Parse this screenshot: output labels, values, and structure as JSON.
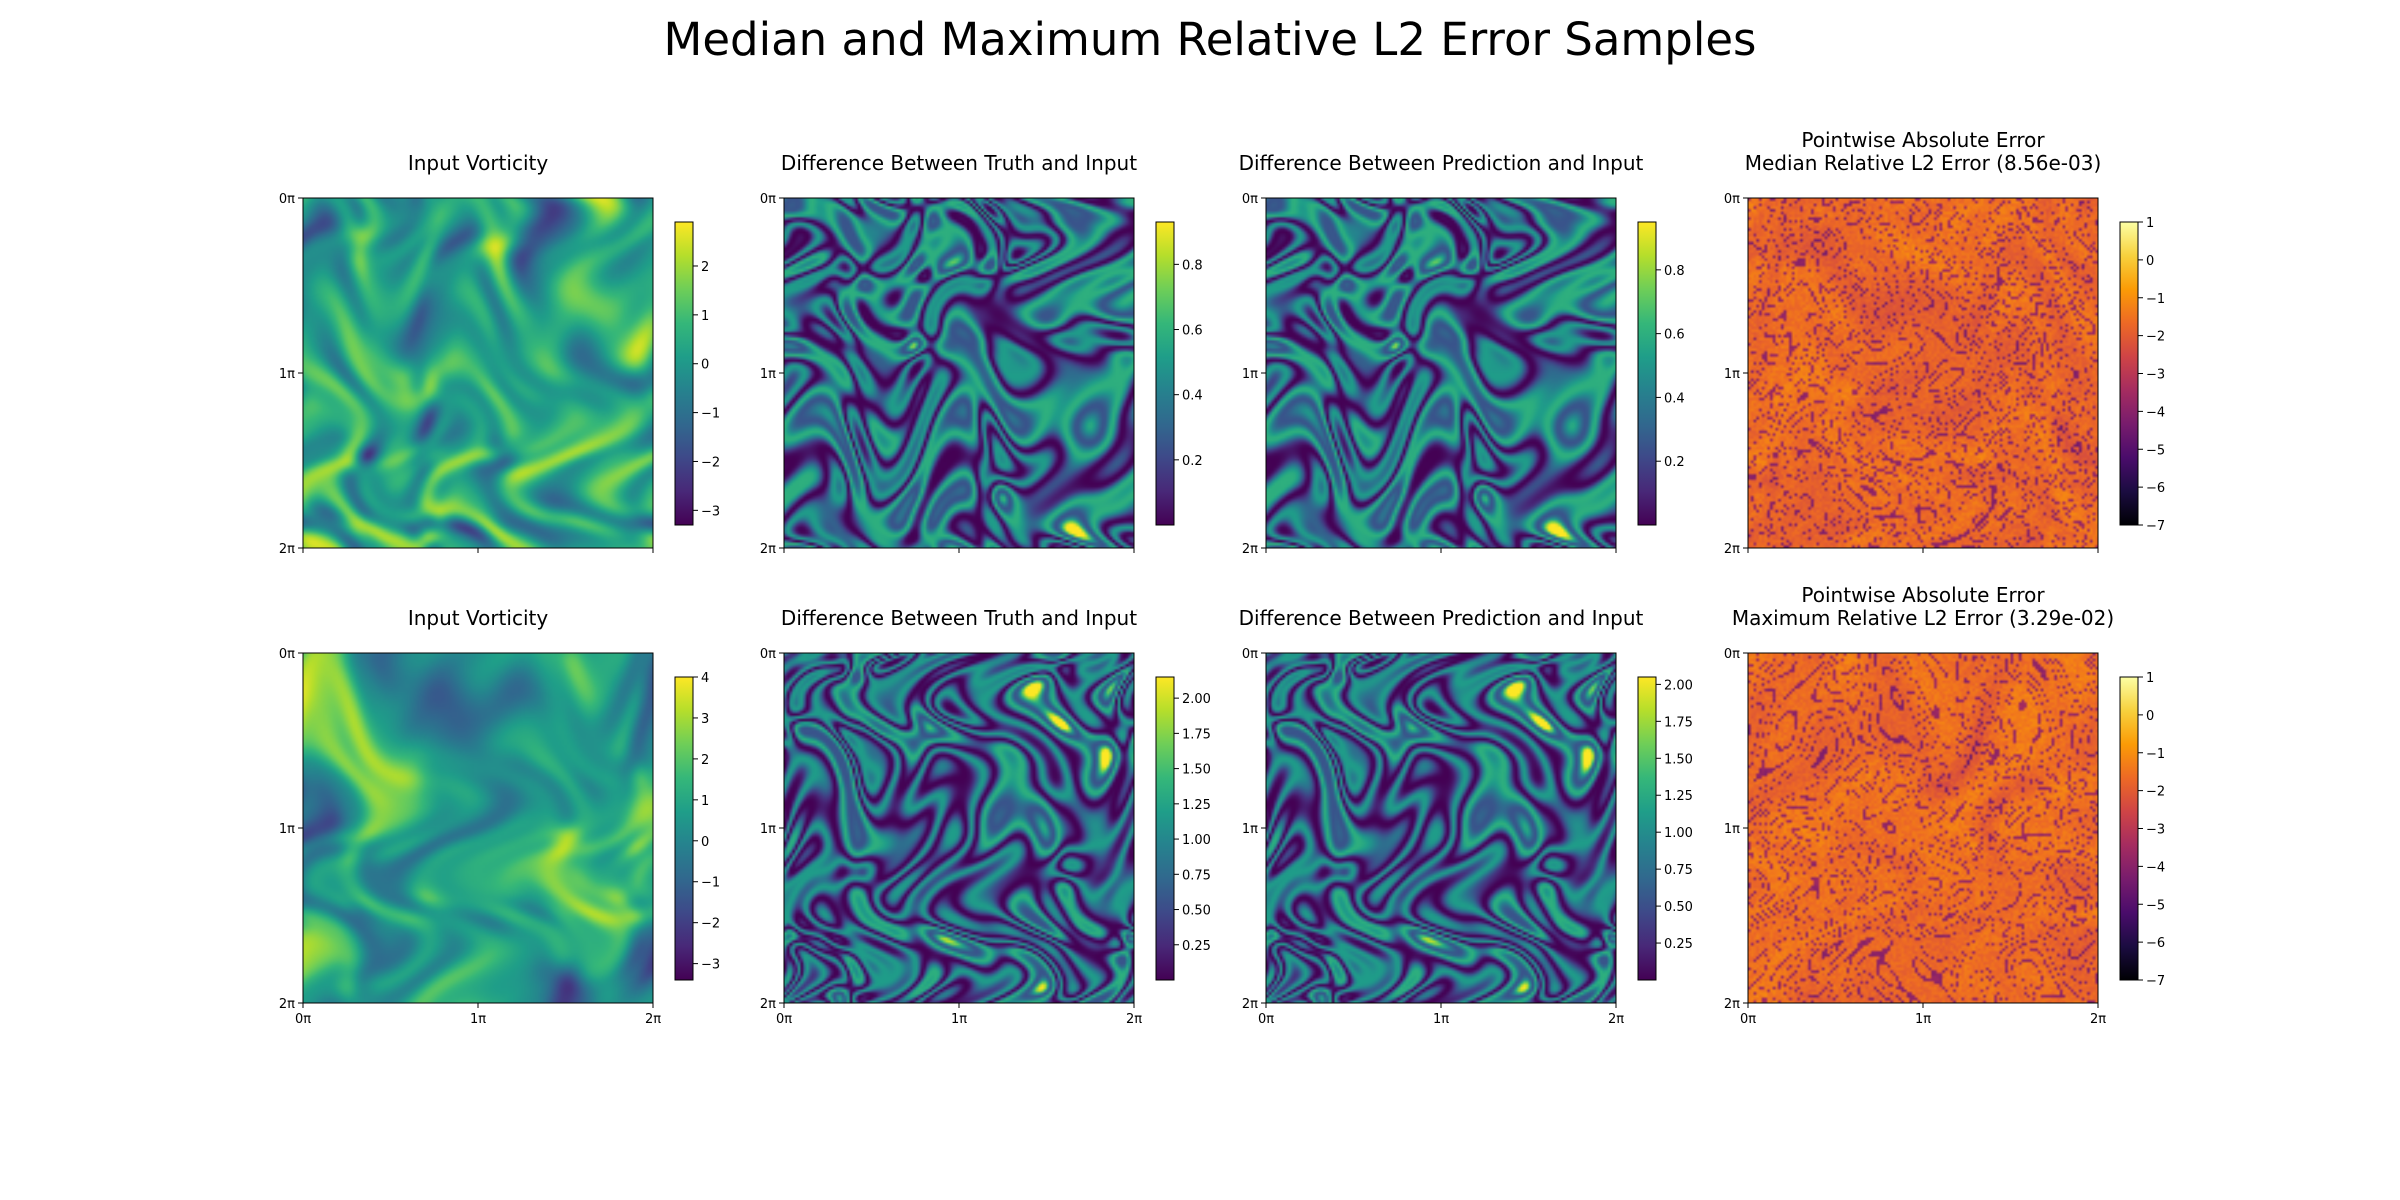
{
  "figure_title": "Median and Maximum Relative L2 Error Samples",
  "axis_ticks": [
    "0π",
    "1π",
    "2π"
  ],
  "colors": {
    "viridis": [
      "#440154",
      "#482878",
      "#3e4989",
      "#31688e",
      "#26828e",
      "#1f9e89",
      "#35b779",
      "#6ece58",
      "#b5de2b",
      "#fde725"
    ],
    "inferno": [
      "#000004",
      "#1b0c41",
      "#4a0c6b",
      "#781c6d",
      "#a52c60",
      "#cf4446",
      "#ed6925",
      "#fb9b06",
      "#f7d13d",
      "#fcffa4"
    ]
  },
  "chart_data": [
    {
      "type": "heatmap",
      "row": 0,
      "col": 0,
      "cmap": "viridis",
      "title": [
        "Input Vorticity"
      ],
      "x_range": [
        0,
        2
      ],
      "y_range": [
        0,
        2
      ],
      "x_unit": "π",
      "y_unit": "π",
      "x_ticks_labeled": false,
      "colorbar": {
        "range": [
          -3.3,
          2.9
        ],
        "ticks": [
          -3,
          -2,
          -1,
          0,
          1,
          2
        ],
        "labels": [
          "−3",
          "−2",
          "−1",
          "0",
          "1",
          "2"
        ]
      },
      "seed": 11
    },
    {
      "type": "heatmap",
      "row": 0,
      "col": 1,
      "cmap": "viridis",
      "title": [
        "Difference Between Truth and Input"
      ],
      "x_range": [
        0,
        2
      ],
      "y_range": [
        0,
        2
      ],
      "x_unit": "π",
      "y_unit": "π",
      "x_ticks_labeled": false,
      "colorbar": {
        "range": [
          0.0,
          0.93
        ],
        "ticks": [
          0.2,
          0.4,
          0.6,
          0.8
        ],
        "labels": [
          "0.2",
          "0.4",
          "0.6",
          "0.8"
        ]
      },
      "seed": 23
    },
    {
      "type": "heatmap",
      "row": 0,
      "col": 2,
      "cmap": "viridis",
      "title": [
        "Difference Between Prediction and Input"
      ],
      "x_range": [
        0,
        2
      ],
      "y_range": [
        0,
        2
      ],
      "x_unit": "π",
      "y_unit": "π",
      "x_ticks_labeled": false,
      "colorbar": {
        "range": [
          0.0,
          0.95
        ],
        "ticks": [
          0.2,
          0.4,
          0.6,
          0.8
        ],
        "labels": [
          "0.2",
          "0.4",
          "0.6",
          "0.8"
        ]
      },
      "seed": 23
    },
    {
      "type": "heatmap",
      "row": 0,
      "col": 3,
      "cmap": "inferno",
      "title": [
        "Pointwise Absolute Error",
        "Median Relative L2 Error (8.56e-03)"
      ],
      "x_range": [
        0,
        2
      ],
      "y_range": [
        0,
        2
      ],
      "x_unit": "π",
      "y_unit": "π",
      "x_ticks_labeled": false,
      "colorbar": {
        "range": [
          -7,
          1
        ],
        "ticks": [
          -7,
          -6,
          -5,
          -4,
          -3,
          -2,
          -1,
          0,
          1
        ],
        "labels": [
          "−7",
          "−6",
          "−5",
          "−4",
          "−3",
          "−2",
          "−1",
          "0",
          "1"
        ]
      },
      "seed": 37
    },
    {
      "type": "heatmap",
      "row": 1,
      "col": 0,
      "cmap": "viridis",
      "title": [
        "Input Vorticity"
      ],
      "x_range": [
        0,
        2
      ],
      "y_range": [
        0,
        2
      ],
      "x_unit": "π",
      "y_unit": "π",
      "x_ticks_labeled": true,
      "colorbar": {
        "range": [
          -3.4,
          4.0
        ],
        "ticks": [
          -3,
          -2,
          -1,
          0,
          1,
          2,
          3,
          4
        ],
        "labels": [
          "−3",
          "−2",
          "−1",
          "0",
          "1",
          "2",
          "3",
          "4"
        ]
      },
      "seed": 41
    },
    {
      "type": "heatmap",
      "row": 1,
      "col": 1,
      "cmap": "viridis",
      "title": [
        "Difference Between Truth and Input"
      ],
      "x_range": [
        0,
        2
      ],
      "y_range": [
        0,
        2
      ],
      "x_unit": "π",
      "y_unit": "π",
      "x_ticks_labeled": true,
      "colorbar": {
        "range": [
          0.0,
          2.15
        ],
        "ticks": [
          0.25,
          0.5,
          0.75,
          1.0,
          1.25,
          1.5,
          1.75,
          2.0
        ],
        "labels": [
          "0.25",
          "0.50",
          "0.75",
          "1.00",
          "1.25",
          "1.50",
          "1.75",
          "2.00"
        ]
      },
      "seed": 53
    },
    {
      "type": "heatmap",
      "row": 1,
      "col": 2,
      "cmap": "viridis",
      "title": [
        "Difference Between Prediction and Input"
      ],
      "x_range": [
        0,
        2
      ],
      "y_range": [
        0,
        2
      ],
      "x_unit": "π",
      "y_unit": "π",
      "x_ticks_labeled": true,
      "colorbar": {
        "range": [
          0.0,
          2.05
        ],
        "ticks": [
          0.25,
          0.5,
          0.75,
          1.0,
          1.25,
          1.5,
          1.75,
          2.0
        ],
        "labels": [
          "0.25",
          "0.50",
          "0.75",
          "1.00",
          "1.25",
          "1.50",
          "1.75",
          "2.00"
        ]
      },
      "seed": 53
    },
    {
      "type": "heatmap",
      "row": 1,
      "col": 3,
      "cmap": "inferno",
      "title": [
        "Pointwise Absolute Error",
        "Maximum Relative L2 Error (3.29e-02)"
      ],
      "x_range": [
        0,
        2
      ],
      "y_range": [
        0,
        2
      ],
      "x_unit": "π",
      "y_unit": "π",
      "x_ticks_labeled": true,
      "colorbar": {
        "range": [
          -7,
          1
        ],
        "ticks": [
          -7,
          -6,
          -5,
          -4,
          -3,
          -2,
          -1,
          0,
          1
        ],
        "labels": [
          "−7",
          "−6",
          "−5",
          "−4",
          "−3",
          "−2",
          "−1",
          "0",
          "1"
        ]
      },
      "seed": 67
    }
  ]
}
